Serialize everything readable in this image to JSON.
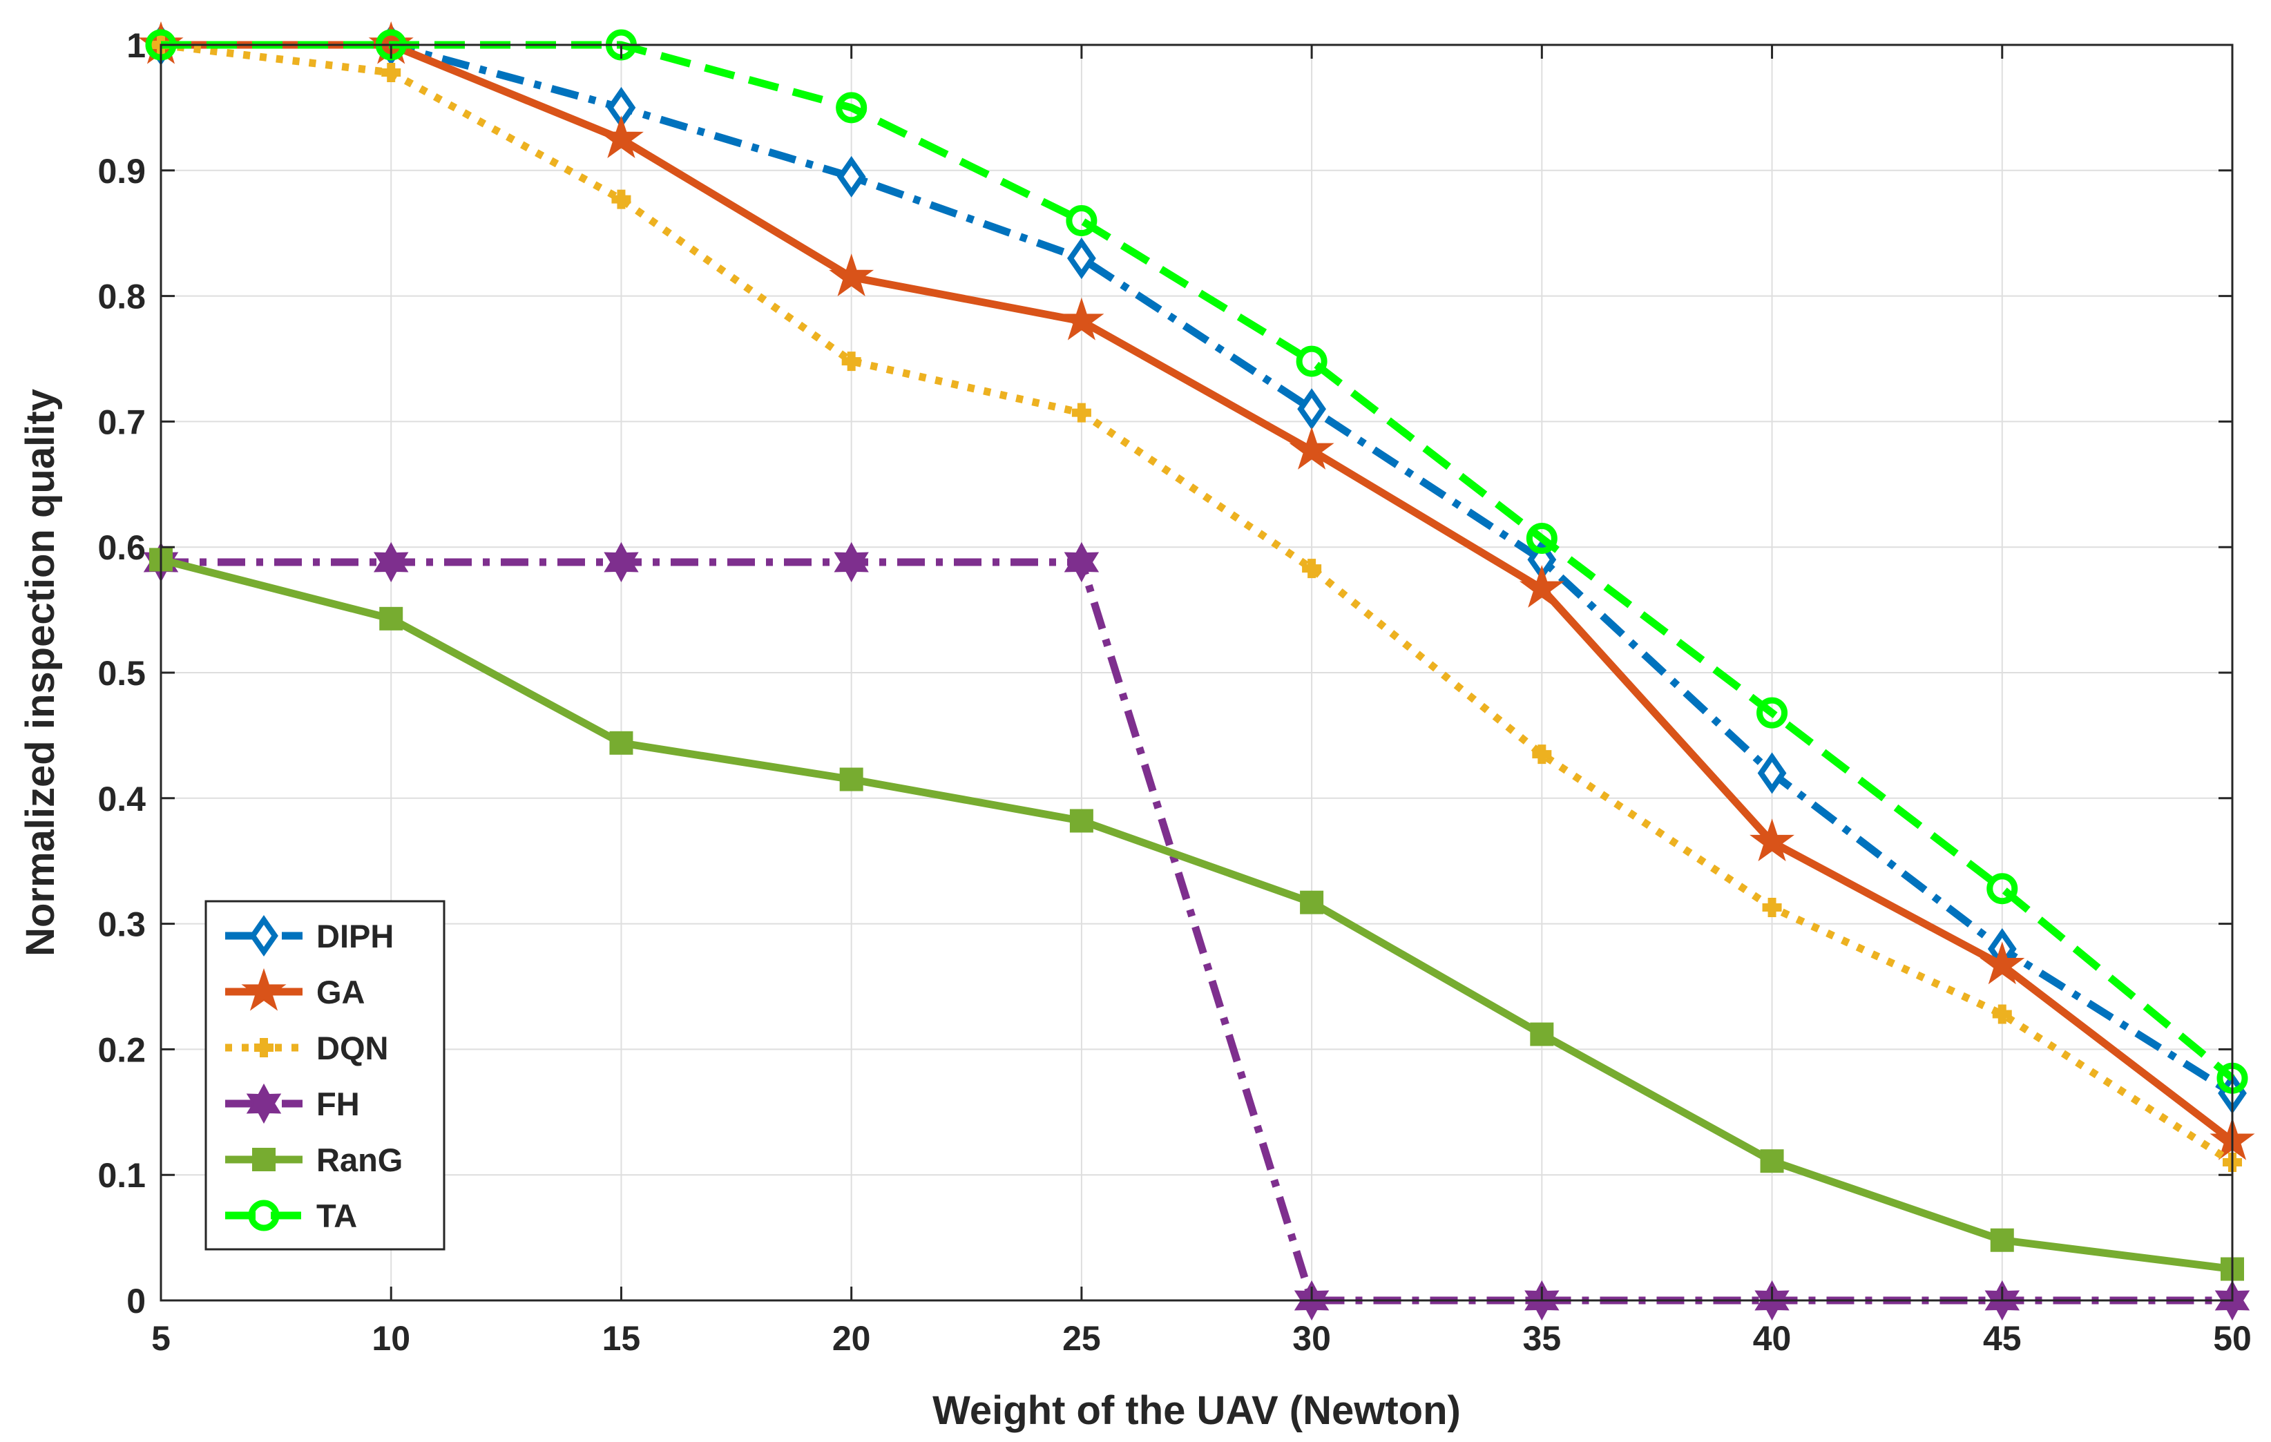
{
  "chart_data": {
    "type": "line",
    "title": "",
    "xlabel": "Weight of the UAV (Newton)",
    "ylabel": "Normalized inspection quality",
    "x": [
      5,
      10,
      15,
      20,
      25,
      30,
      35,
      40,
      45,
      50
    ],
    "xlim": [
      5,
      50
    ],
    "ylim": [
      0,
      1
    ],
    "xticks": [
      5,
      10,
      15,
      20,
      25,
      30,
      35,
      40,
      45,
      50
    ],
    "yticks": [
      0,
      0.1,
      0.2,
      0.3,
      0.4,
      0.5,
      0.6,
      0.7,
      0.8,
      0.9,
      1
    ],
    "xtick_labels": [
      "5",
      "10",
      "15",
      "20",
      "25",
      "30",
      "35",
      "40",
      "45",
      "50"
    ],
    "ytick_labels": [
      "0",
      "0.1",
      "0.2",
      "0.3",
      "0.4",
      "0.5",
      "0.6",
      "0.7",
      "0.8",
      "0.9",
      "1"
    ],
    "grid": true,
    "legend_position": "bottom-left",
    "series": [
      {
        "name": "DIPH",
        "color": "#0072BD",
        "line_style": "dash-dot",
        "marker": "diamond",
        "values": [
          1.0,
          1.0,
          0.95,
          0.895,
          0.83,
          0.71,
          0.59,
          0.42,
          0.28,
          0.165
        ]
      },
      {
        "name": "GA",
        "color": "#D95319",
        "line_style": "solid",
        "marker": "pentagram",
        "values": [
          1.0,
          1.0,
          0.925,
          0.815,
          0.78,
          0.677,
          0.567,
          0.365,
          0.267,
          0.127
        ]
      },
      {
        "name": "DQN",
        "color": "#EDB120",
        "line_style": "dotted",
        "marker": "plus",
        "values": [
          1.0,
          0.978,
          0.877,
          0.748,
          0.707,
          0.583,
          0.435,
          0.313,
          0.228,
          0.11
        ]
      },
      {
        "name": "FH",
        "color": "#7E2F8E",
        "line_style": "dash-dot",
        "marker": "hexagram",
        "values": [
          0.588,
          0.588,
          0.588,
          0.588,
          0.588,
          0.0,
          0.0,
          0.0,
          0.0,
          0.0
        ]
      },
      {
        "name": "RanG",
        "color": "#77AC30",
        "line_style": "solid",
        "marker": "square",
        "values": [
          0.59,
          0.543,
          0.444,
          0.415,
          0.382,
          0.317,
          0.212,
          0.111,
          0.048,
          0.025
        ]
      },
      {
        "name": "TA",
        "color": "#00FF00",
        "line_style": "dashed",
        "marker": "circle",
        "values": [
          1.0,
          1.0,
          1.0,
          0.95,
          0.86,
          0.748,
          0.607,
          0.468,
          0.328,
          0.177
        ]
      }
    ]
  }
}
